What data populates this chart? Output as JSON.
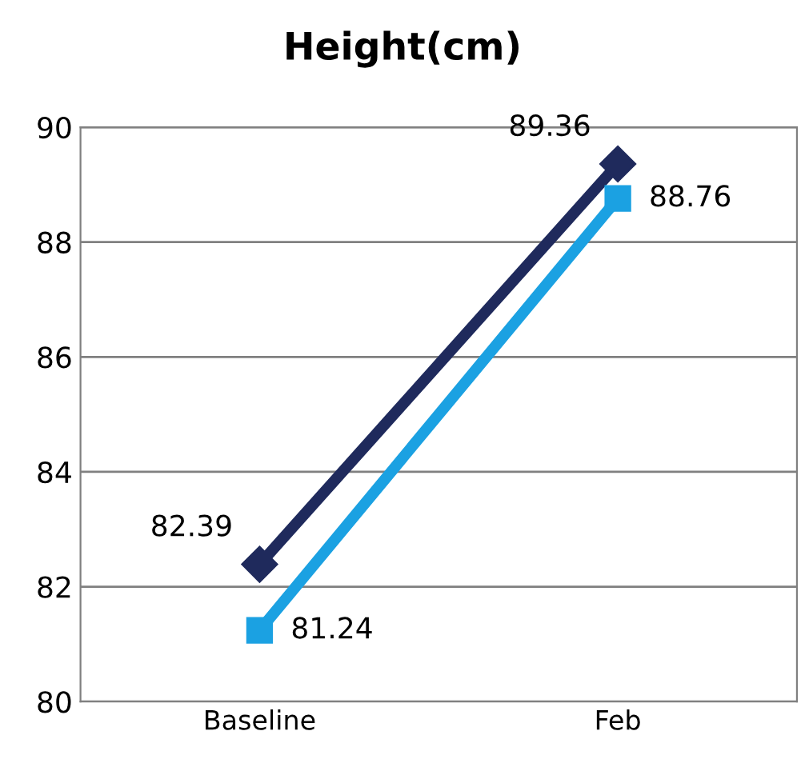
{
  "chart_data": {
    "type": "line",
    "title": "Height(cm)",
    "categories": [
      "Baseline",
      "Feb"
    ],
    "series": [
      {
        "color": "#1f2a5c",
        "values": [
          82.39,
          89.36
        ],
        "marker": "diamond"
      },
      {
        "color": "#1ba1e2",
        "values": [
          81.24,
          88.76
        ],
        "marker": "square"
      }
    ],
    "ylim": [
      80,
      90
    ],
    "yticks": [
      80,
      82,
      84,
      86,
      88,
      90
    ],
    "grid": "y",
    "data_labels": true,
    "line_style": "solid"
  }
}
